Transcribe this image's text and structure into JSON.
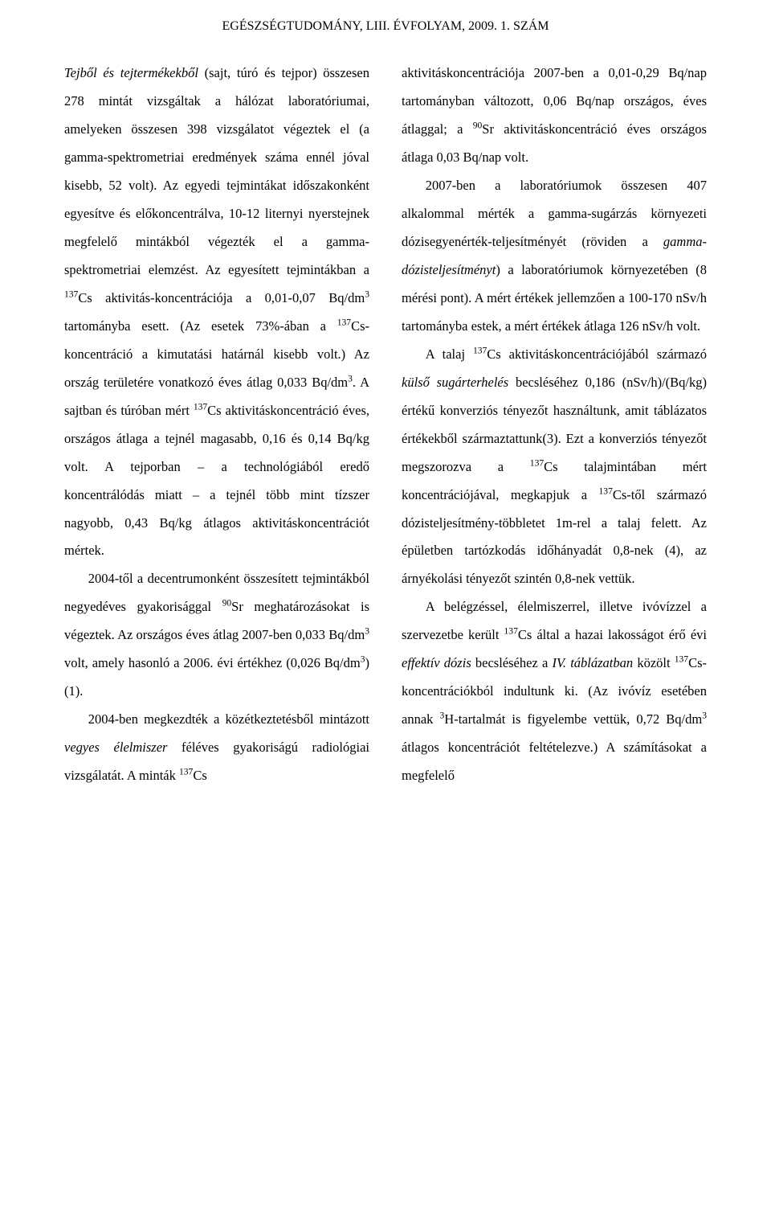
{
  "header": "EGÉSZSÉGTUDOMÁNY, LIII. ÉVFOLYAM, 2009. 1. SZÁM",
  "left": {
    "p1_a": "Tejből és tejtermékekből",
    "p1_b": " (sajt, túró és tejpor) összesen 278 mintát vizsgáltak a hálózat laboratóriumai, amelyeken összesen 398 vizsgálatot végeztek el (a gamma-spektrometriai eredmények száma ennél jóval kisebb, 52 volt). Az egyedi tejmintákat időszakonként egyesítve és előkoncentrálva, 10-12 liternyi nyerstejnek megfelelő mintákból végezték el a gamma-spektrometriai elemzést. Az egyesített tejmintákban a ",
    "p1_c": "Cs aktivitás-koncentrációja a 0,01-0,07 Bq/dm",
    "p1_d": " tartományba esett. (Az esetek 73%-ában a ",
    "p1_e": "Cs-koncentráció a kimutatási határnál kisebb volt.) Az ország területére vonatkozó éves átlag 0,033 Bq/dm",
    "p1_f": ". A sajtban és túróban mért ",
    "p1_g": "Cs aktivitáskoncentráció éves, országos átlaga a tejnél magasabb, 0,16 és 0,14 Bq/kg volt. A tejporban – a technológiából eredő koncentrálódás miatt – a tejnél több mint tízszer nagyobb, 0,43 Bq/kg átlagos aktivitáskoncentrációt mértek.",
    "p2_a": "2004-től a decentrumonként összesített tejmintákból negyedéves gyakorisággal ",
    "p2_b": "Sr meghatározásokat is végeztek. Az országos éves átlag 2007-ben 0,033 Bq/dm",
    "p2_c": " volt, amely hasonló a 2006. évi értékhez (0,026 Bq/dm",
    "p2_d": ") (1).",
    "p3_a": "2004-ben megkezdték a közétkeztetésből mintázott ",
    "p3_b": "vegyes élelmiszer",
    "p3_c": " féléves gyakoriságú radiológiai vizsgálatát. A minták ",
    "p3_d": "Cs"
  },
  "right": {
    "p1_a": "aktivitáskoncentrációja 2007-ben a 0,01-0,29 Bq/nap tartományban változott, 0,06 Bq/nap országos, éves átlaggal; a ",
    "p1_b": "Sr aktivitáskoncentráció éves országos átlaga 0,03 Bq/nap volt.",
    "p2_a": "2007-ben a laboratóriumok összesen 407 alkalommal mérték a gamma-sugárzás környezeti dózisegyenérték-teljesítményét (röviden a ",
    "p2_b": "gamma-dózisteljesítményt",
    "p2_c": ") a laboratóriumok környezetében (8 mérési pont). A mért értékek jellemzően a 100-170 nSv/h tartományba estek, a mért értékek átlaga 126 nSv/h volt.",
    "p3_a": "A talaj ",
    "p3_b": "Cs aktivitáskoncentrációjából származó ",
    "p3_c": "külső sugárterhelés",
    "p3_d": " becsléséhez 0,186 (nSv/h)/(Bq/kg) értékű konverziós tényezőt használtunk, amit táblázatos értékekből származtattunk(3). Ezt a konverziós tényezőt megszorozva a ",
    "p3_e": "Cs talajmintában mért koncentrációjával, megkapjuk a ",
    "p3_f": "Cs-től származó dózisteljesítmény-többletet 1m-rel a talaj felett. Az épületben tartózkodás időhányadát 0,8-nek (4), az árnyékolási tényezőt szintén 0,8-nek vettük.",
    "p4_a": "A belégzéssel, élelmiszerrel, illetve ivóvízzel a szervezetbe került ",
    "p4_b": "Cs által a hazai lakosságot érő évi ",
    "p4_c": "effektív dózis",
    "p4_d": " becsléséhez a ",
    "p4_e": "IV. táblázatban",
    "p4_f": " közölt ",
    "p4_g": "Cs-koncentrációkból indultunk ki. (Az ivóvíz esetében annak ",
    "p4_h": "H-tartalmát is figyelembe vettük, 0,72 Bq/dm",
    "p4_i": " átlagos koncentrációt feltételezve.) A számításokat a megfelelő"
  },
  "iso": {
    "cs137": "137",
    "sr90": "90",
    "h3": "3",
    "sup3": "3"
  }
}
